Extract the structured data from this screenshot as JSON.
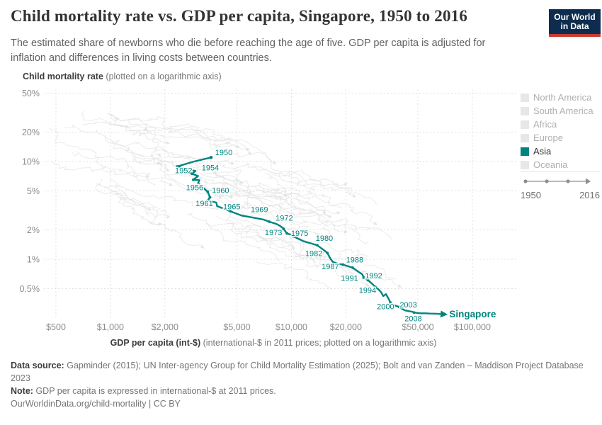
{
  "header": {
    "title": "Child mortality rate vs. GDP per capita, Singapore, 1950 to 2016",
    "subtitle": "The estimated share of newborns who die before reaching the age of five. GDP per capita is adjusted for inflation and differences in living costs between countries.",
    "logo": {
      "line1": "Our World",
      "line2": "in Data"
    },
    "brand_colors": {
      "navy": "#0e2d4e",
      "red": "#c83c30"
    }
  },
  "chart_data": {
    "type": "line",
    "title": "Child mortality rate vs. GDP per capita, Singapore, 1950 to 2016",
    "ylabel": "Child mortality rate",
    "ylabel_note": "(plotted on a logarithmic axis)",
    "xlabel": "GDP per capita (int-$)",
    "xlabel_note": "(international-$ in 2011 prices; plotted on a logarithmic axis)",
    "x_axis_log": true,
    "y_axis_log": true,
    "x_ticks": [
      {
        "value": 500,
        "label": "$500"
      },
      {
        "value": 1000,
        "label": "$1,000"
      },
      {
        "value": 2000,
        "label": "$2,000"
      },
      {
        "value": 5000,
        "label": "$5,000"
      },
      {
        "value": 10000,
        "label": "$10,000"
      },
      {
        "value": 20000,
        "label": "$20,000"
      },
      {
        "value": 50000,
        "label": "$50,000"
      },
      {
        "value": 100000,
        "label": "$100,000"
      }
    ],
    "y_ticks": [
      {
        "value": 50,
        "label": "50%"
      },
      {
        "value": 20,
        "label": "20%"
      },
      {
        "value": 10,
        "label": "10%"
      },
      {
        "value": 5,
        "label": "5%"
      },
      {
        "value": 2,
        "label": "2%"
      },
      {
        "value": 1,
        "label": "1%"
      },
      {
        "value": 0.5,
        "label": "0.5%"
      }
    ],
    "series": [
      {
        "name": "Singapore",
        "color": "#00847E",
        "points_format": [
          "year",
          "gdp_per_capita_intl_dollars",
          "child_mortality_pct"
        ],
        "points": [
          [
            1950,
            3600,
            11.0
          ],
          [
            1951,
            2900,
            10.0
          ],
          [
            1952,
            2340,
            8.9
          ],
          [
            1953,
            2950,
            8.0
          ],
          [
            1954,
            2820,
            7.5
          ],
          [
            1955,
            3050,
            7.1
          ],
          [
            1956,
            2870,
            6.5
          ],
          [
            1957,
            3100,
            6.45
          ],
          [
            1958,
            3050,
            6.0
          ],
          [
            1959,
            3250,
            5.4
          ],
          [
            1960,
            3450,
            4.9
          ],
          [
            1961,
            3550,
            4.3
          ],
          [
            1962,
            3450,
            4.0
          ],
          [
            1963,
            3850,
            3.8
          ],
          [
            1964,
            3880,
            3.5
          ],
          [
            1965,
            4600,
            3.1
          ],
          [
            1966,
            5300,
            2.8
          ],
          [
            1967,
            6100,
            2.67
          ],
          [
            1968,
            7000,
            2.55
          ],
          [
            1969,
            7550,
            2.42
          ],
          [
            1970,
            8250,
            2.3
          ],
          [
            1971,
            8700,
            2.18
          ],
          [
            1972,
            9050,
            2.05
          ],
          [
            1973,
            9450,
            1.84
          ],
          [
            1974,
            9980,
            1.78
          ],
          [
            1975,
            10250,
            1.72
          ],
          [
            1976,
            10850,
            1.63
          ],
          [
            1977,
            11550,
            1.54
          ],
          [
            1978,
            12250,
            1.49
          ],
          [
            1979,
            13050,
            1.44
          ],
          [
            1980,
            13900,
            1.39
          ],
          [
            1981,
            14950,
            1.26
          ],
          [
            1982,
            15800,
            1.16
          ],
          [
            1983,
            16500,
            1.0
          ],
          [
            1984,
            16650,
            0.98
          ],
          [
            1985,
            16950,
            0.94
          ],
          [
            1986,
            18000,
            0.9
          ],
          [
            1987,
            19300,
            0.88
          ],
          [
            1988,
            21800,
            0.82
          ],
          [
            1989,
            23300,
            0.75
          ],
          [
            1990,
            24700,
            0.7
          ],
          [
            1991,
            25100,
            0.65
          ],
          [
            1992,
            26500,
            0.61
          ],
          [
            1993,
            28000,
            0.56
          ],
          [
            1994,
            29100,
            0.52
          ],
          [
            1995,
            30400,
            0.49
          ],
          [
            1996,
            31300,
            0.46
          ],
          [
            1997,
            32200,
            0.42
          ],
          [
            1998,
            33300,
            0.44
          ],
          [
            1999,
            34300,
            0.4
          ],
          [
            2000,
            35300,
            0.36
          ],
          [
            2001,
            36300,
            0.345
          ],
          [
            2002,
            36900,
            0.34
          ],
          [
            2003,
            39400,
            0.325
          ],
          [
            2004,
            41000,
            0.31
          ],
          [
            2005,
            42500,
            0.3
          ],
          [
            2006,
            44400,
            0.295
          ],
          [
            2007,
            46700,
            0.29
          ],
          [
            2008,
            47600,
            0.285
          ],
          [
            2010,
            51500,
            0.28
          ],
          [
            2012,
            55000,
            0.28
          ],
          [
            2014,
            58500,
            0.278
          ],
          [
            2016,
            64000,
            0.277
          ]
        ]
      }
    ],
    "labeled_years": [
      1950,
      1952,
      1954,
      1956,
      1960,
      1961,
      1965,
      1969,
      1972,
      1973,
      1975,
      1980,
      1982,
      1987,
      1988,
      1991,
      1992,
      1994,
      2000,
      2003,
      2008
    ],
    "endpoint_label": "Singapore"
  },
  "legend": {
    "items": [
      {
        "label": "North America",
        "active": false
      },
      {
        "label": "South America",
        "active": false
      },
      {
        "label": "Africa",
        "active": false
      },
      {
        "label": "Europe",
        "active": false
      },
      {
        "label": "Asia",
        "active": true,
        "color": "#00847E"
      },
      {
        "label": "Oceania",
        "active": false
      }
    ],
    "inactive_color": "#e7e7e7",
    "timeline": {
      "start": "1950",
      "end": "2016"
    }
  },
  "footer": {
    "datasource_label": "Data source:",
    "datasource": "Gapminder (2015); UN Inter-agency Group for Child Mortality Estimation (2025); Bolt and van Zanden – Maddison Project Database 2023",
    "note_label": "Note:",
    "note": "GDP per capita is expressed in international-$ at 2011 prices.",
    "url": "OurWorldinData.org/child-mortality | CC BY"
  }
}
